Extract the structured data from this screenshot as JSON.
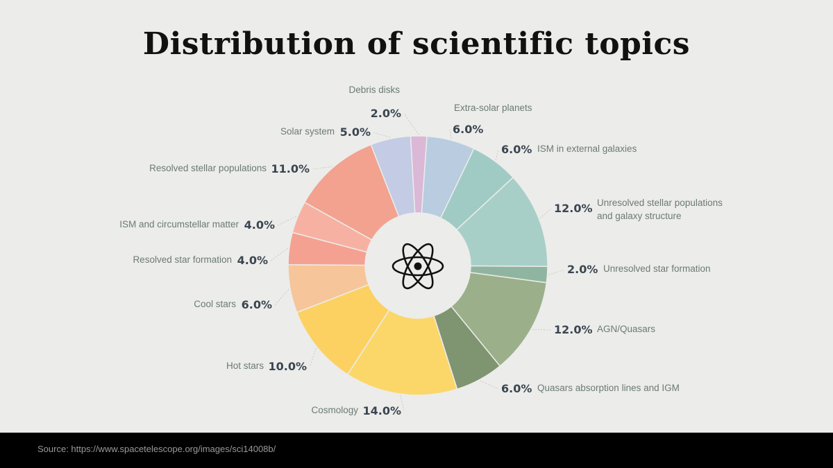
{
  "chart_data": {
    "type": "pie",
    "title": "Distribution of scientific topics",
    "value_suffix": "%",
    "center_icon": "atom-icon",
    "slices": [
      {
        "label": "Extra-solar planets",
        "value": 6.0,
        "display": "6.0%",
        "color": "#b9cce0"
      },
      {
        "label": "ISM in external galaxies",
        "value": 6.0,
        "display": "6.0%",
        "color": "#9fcbc4"
      },
      {
        "label": "Unresolved stellar populations and galaxy structure",
        "label_lines": [
          "Unresolved stellar populations",
          "and galaxy structure"
        ],
        "value": 12.0,
        "display": "12.0%",
        "color": "#a7cfc8"
      },
      {
        "label": "Unresolved star formation",
        "value": 2.0,
        "display": "2.0%",
        "color": "#8fb5a0"
      },
      {
        "label": "AGN/Quasars",
        "value": 12.0,
        "display": "12.0%",
        "color": "#9bb08a"
      },
      {
        "label": "Quasars absorption lines and IGM",
        "value": 6.0,
        "display": "6.0%",
        "color": "#7f9470"
      },
      {
        "label": "Cosmology",
        "value": 14.0,
        "display": "14.0%",
        "color": "#fbd76a"
      },
      {
        "label": "Hot stars",
        "value": 10.0,
        "display": "10.0%",
        "color": "#fcd162"
      },
      {
        "label": "Cool stars",
        "value": 6.0,
        "display": "6.0%",
        "color": "#f7c59a"
      },
      {
        "label": "Resolved star formation",
        "value": 4.0,
        "display": "4.0%",
        "color": "#f4a191"
      },
      {
        "label": "ISM and circumstellar matter",
        "value": 4.0,
        "display": "4.0%",
        "color": "#f7b1a3"
      },
      {
        "label": "Resolved stellar populations",
        "value": 11.0,
        "display": "11.0%",
        "color": "#f2a28f"
      },
      {
        "label": "Solar system",
        "value": 5.0,
        "display": "5.0%",
        "color": "#c3cbe5"
      },
      {
        "label": "Debris disks",
        "value": 2.0,
        "display": "2.0%",
        "color": "#dab8d6"
      }
    ]
  },
  "footer": {
    "source": "Source: https://www.spacetelescope.org/images/sci14008b/"
  }
}
